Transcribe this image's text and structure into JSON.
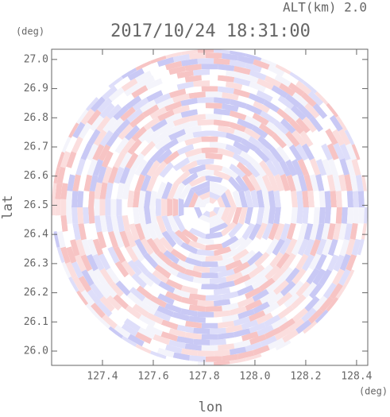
{
  "chart_data": {
    "type": "radar-ppi",
    "title": "2017/10/24 18:31:00",
    "subtitle": "ALT(km) 2.0",
    "x_label": "lon",
    "y_label": "lat",
    "x_unit": "(deg)",
    "y_unit": "(deg)",
    "xlim": [
      127.2,
      128.444
    ],
    "ylim": [
      25.951,
      27.035
    ],
    "xticks": [
      127.4,
      127.6,
      127.8,
      {
        "value": 128,
        "label": "128.0"
      },
      128.2,
      128.4
    ],
    "yticks": [
      {
        "value": 26,
        "label": "26.0"
      },
      26.1,
      26.2,
      26.3,
      26.4,
      26.5,
      26.6,
      26.7,
      26.8,
      26.9,
      {
        "value": 27,
        "label": "27.0"
      }
    ]
  }
}
